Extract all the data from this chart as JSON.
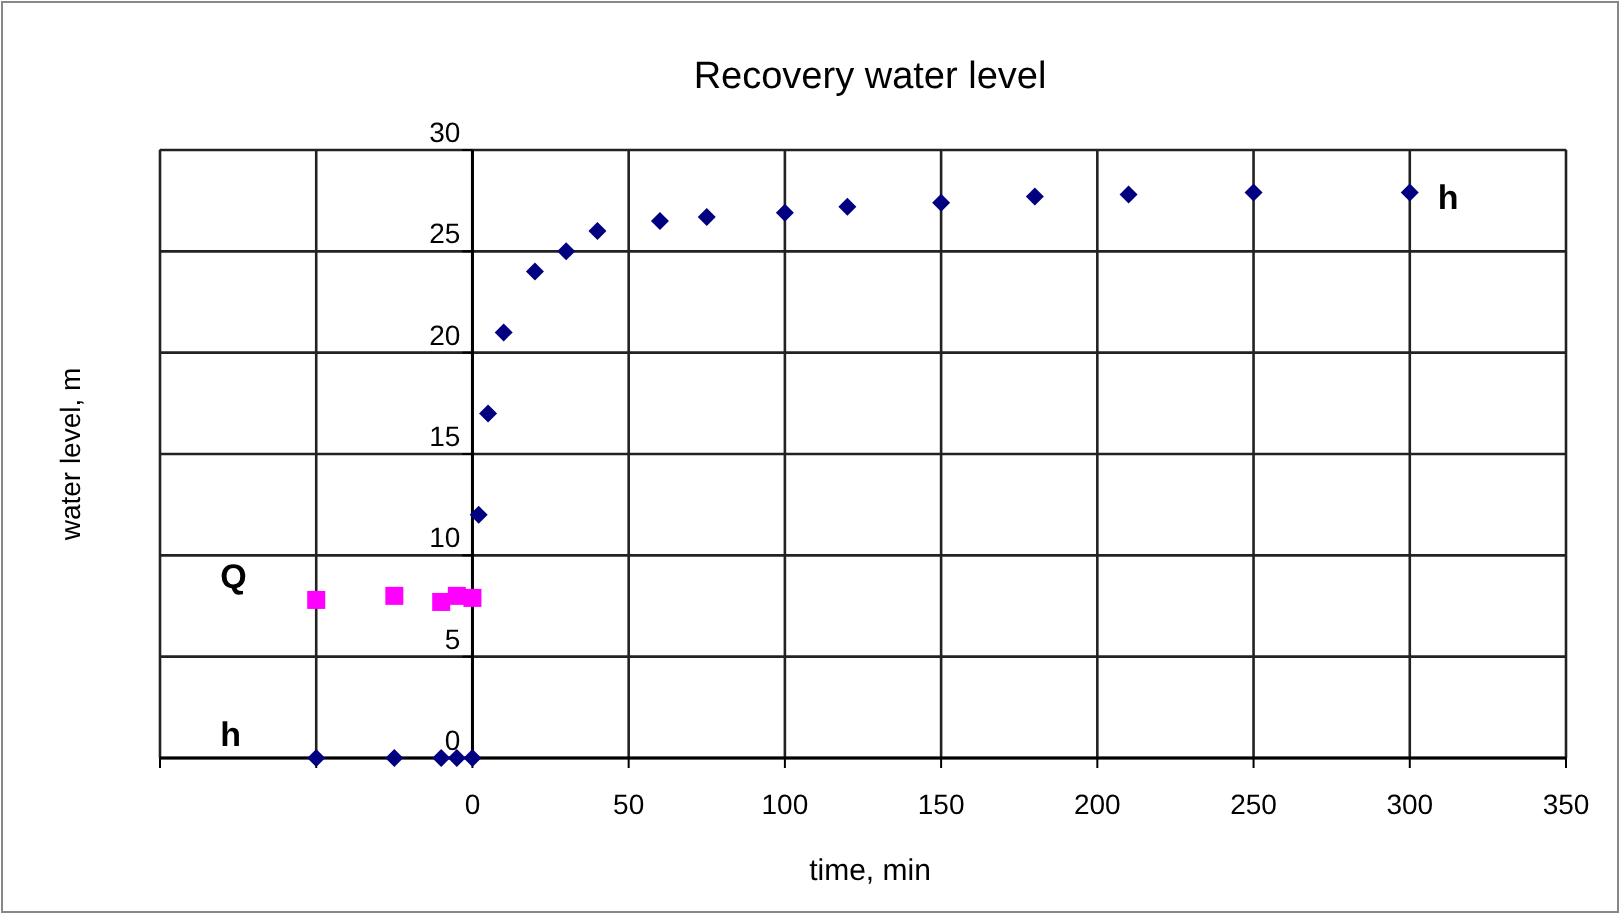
{
  "chart_data": {
    "type": "scatter",
    "title": "Recovery water level",
    "xlabel": "time, min",
    "ylabel": "water level, m",
    "xlim": [
      -100,
      350
    ],
    "xticks": [
      {
        "value": -100,
        "label": null
      },
      {
        "value": -50,
        "label": null
      },
      0,
      50,
      100,
      150,
      200,
      250,
      300,
      350
    ],
    "ylim": [
      0,
      30
    ],
    "yticks": [
      0,
      5,
      10,
      15,
      20,
      25,
      30
    ],
    "grid": true,
    "legend": false,
    "series": [
      {
        "name": "h",
        "color": "#000080",
        "marker": "diamond",
        "x": [
          -50,
          -25,
          -10,
          -5,
          0,
          2,
          5,
          10,
          20,
          30,
          40,
          60,
          75,
          100,
          120,
          150,
          180,
          210,
          250,
          300
        ],
        "values": [
          0,
          0,
          0,
          0,
          0,
          12,
          17,
          21,
          24,
          25,
          26,
          26.5,
          26.7,
          26.9,
          27.2,
          27.4,
          27.7,
          27.8,
          27.9,
          27.9
        ]
      },
      {
        "name": "Q",
        "color": "#ff00ff",
        "marker": "square",
        "x": [
          -50,
          -25,
          -10,
          -5,
          0
        ],
        "values": [
          7.8,
          8,
          7.7,
          8,
          7.9
        ]
      }
    ],
    "annotations": [
      "h"
    ]
  }
}
